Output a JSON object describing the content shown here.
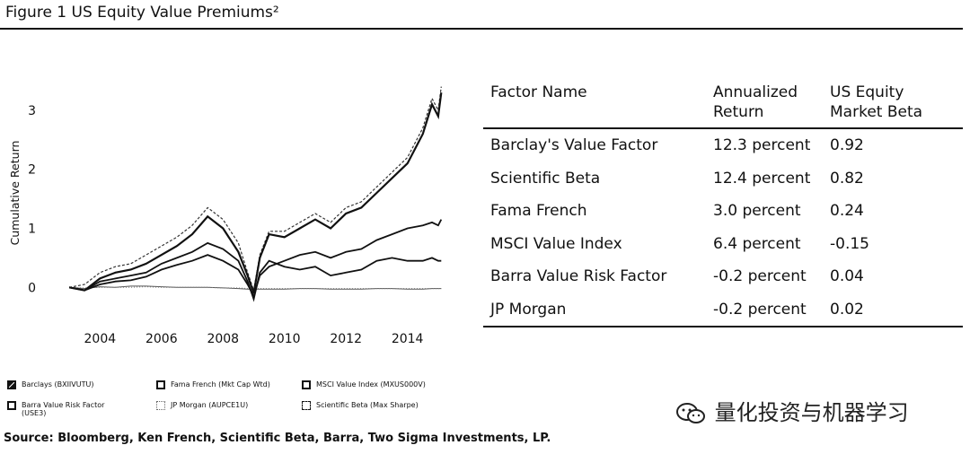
{
  "figure": {
    "title": "Figure 1  US Equity Value Premiums²",
    "source": "Source: Bloomberg, Ken French, Scientific Beta, Barra, Two Sigma Investments, LP."
  },
  "chart_data": {
    "type": "line",
    "title": "",
    "xlabel": "",
    "ylabel": "Cumulative Return",
    "xlim": [
      2002.5,
      2015.5
    ],
    "ylim": [
      -0.3,
      3.5
    ],
    "xticks": [
      2004,
      2006,
      2008,
      2010,
      2012,
      2014
    ],
    "yticks": [
      0,
      1,
      2,
      3
    ],
    "x": [
      2003.0,
      2003.5,
      2004.0,
      2004.5,
      2005.0,
      2005.5,
      2006.0,
      2006.5,
      2007.0,
      2007.5,
      2008.0,
      2008.5,
      2008.8,
      2009.0,
      2009.2,
      2009.5,
      2010.0,
      2010.5,
      2011.0,
      2011.5,
      2012.0,
      2012.5,
      2013.0,
      2013.5,
      2014.0,
      2014.5,
      2014.8,
      2015.0,
      2015.1
    ],
    "series": [
      {
        "name": "Barclays (BXIIVUTU)",
        "style": "solid-thick",
        "values": [
          0.0,
          -0.05,
          0.15,
          0.25,
          0.3,
          0.4,
          0.55,
          0.7,
          0.9,
          1.2,
          1.0,
          0.6,
          0.2,
          -0.1,
          0.5,
          0.9,
          0.85,
          1.0,
          1.15,
          1.0,
          1.25,
          1.35,
          1.6,
          1.85,
          2.1,
          2.6,
          3.1,
          2.9,
          3.3
        ]
      },
      {
        "name": "Fama French (Mkt Cap Wtd)",
        "style": "solid",
        "values": [
          0.0,
          -0.05,
          0.05,
          0.1,
          0.12,
          0.18,
          0.3,
          0.38,
          0.45,
          0.55,
          0.45,
          0.3,
          0.05,
          -0.15,
          0.2,
          0.35,
          0.45,
          0.55,
          0.6,
          0.5,
          0.6,
          0.65,
          0.8,
          0.9,
          1.0,
          1.05,
          1.1,
          1.05,
          1.15
        ]
      },
      {
        "name": "MSCI Value Index (MXUS000V)",
        "style": "solid",
        "values": [
          0.0,
          -0.05,
          0.1,
          0.15,
          0.2,
          0.25,
          0.4,
          0.5,
          0.6,
          0.75,
          0.65,
          0.45,
          0.1,
          -0.2,
          0.25,
          0.45,
          0.35,
          0.3,
          0.35,
          0.2,
          0.25,
          0.3,
          0.45,
          0.5,
          0.45,
          0.45,
          0.5,
          0.45,
          0.45
        ]
      },
      {
        "name": "Barra Value Risk Factor (USE3)",
        "style": "thin",
        "values": [
          0.0,
          -0.02,
          0.01,
          0.0,
          0.02,
          0.02,
          0.01,
          0.0,
          0.0,
          0.0,
          -0.01,
          -0.02,
          -0.03,
          -0.03,
          -0.03,
          -0.03,
          -0.03,
          -0.02,
          -0.02,
          -0.03,
          -0.03,
          -0.03,
          -0.02,
          -0.02,
          -0.03,
          -0.03,
          -0.02,
          -0.02,
          -0.02
        ]
      },
      {
        "name": "JP Morgan (AUPCE1U)",
        "style": "dotted",
        "values": [
          0.0,
          -0.01,
          0.0,
          0.0,
          0.0,
          0.01,
          0.0,
          0.0,
          0.0,
          0.0,
          -0.01,
          -0.01,
          -0.02,
          -0.02,
          -0.02,
          -0.02,
          -0.02,
          -0.02,
          -0.02,
          -0.02,
          -0.02,
          -0.02,
          -0.02,
          -0.02,
          -0.02,
          -0.02,
          -0.02,
          -0.02,
          -0.02
        ]
      },
      {
        "name": "Scientific Beta (Max Sharpe)",
        "style": "dashed",
        "values": [
          0.0,
          0.05,
          0.25,
          0.35,
          0.4,
          0.55,
          0.7,
          0.85,
          1.05,
          1.35,
          1.15,
          0.75,
          0.25,
          -0.05,
          0.55,
          0.95,
          0.95,
          1.1,
          1.25,
          1.1,
          1.35,
          1.45,
          1.7,
          1.95,
          2.2,
          2.7,
          3.2,
          3.0,
          3.4
        ]
      }
    ],
    "legend_position": "bottom"
  },
  "table": {
    "headers": [
      "Factor Name",
      "Annualized Return",
      "US Equity Market Beta"
    ],
    "rows": [
      [
        "Barclay's Value Factor",
        "12.3 percent",
        "0.92"
      ],
      [
        "Scientific Beta",
        "12.4 percent",
        "0.82"
      ],
      [
        "Fama French",
        "3.0 percent",
        "0.24"
      ],
      [
        "MSCI Value Index",
        "6.4 percent",
        "-0.15"
      ],
      [
        "Barra Value Risk Factor",
        "-0.2 percent",
        "0.04"
      ],
      [
        "JP Morgan",
        "-0.2 percent",
        "0.02"
      ]
    ]
  },
  "legend_items": [
    {
      "label": "Barclays (BXIIVUTU)",
      "swatch": "solid-fill"
    },
    {
      "label": "Fama French (Mkt Cap Wtd)",
      "swatch": "solid"
    },
    {
      "label": "MSCI Value Index (MXUS000V)",
      "swatch": "solid"
    },
    {
      "label": "Barra Value Risk Factor (USE3)",
      "swatch": "solid"
    },
    {
      "label": "JP Morgan (AUPCE1U)",
      "swatch": "dotted"
    },
    {
      "label": "Scientific Beta (Max Sharpe)",
      "swatch": "dashed"
    }
  ],
  "watermark": {
    "text": "量化投资与机器学习",
    "icon": "wechat-icon"
  }
}
